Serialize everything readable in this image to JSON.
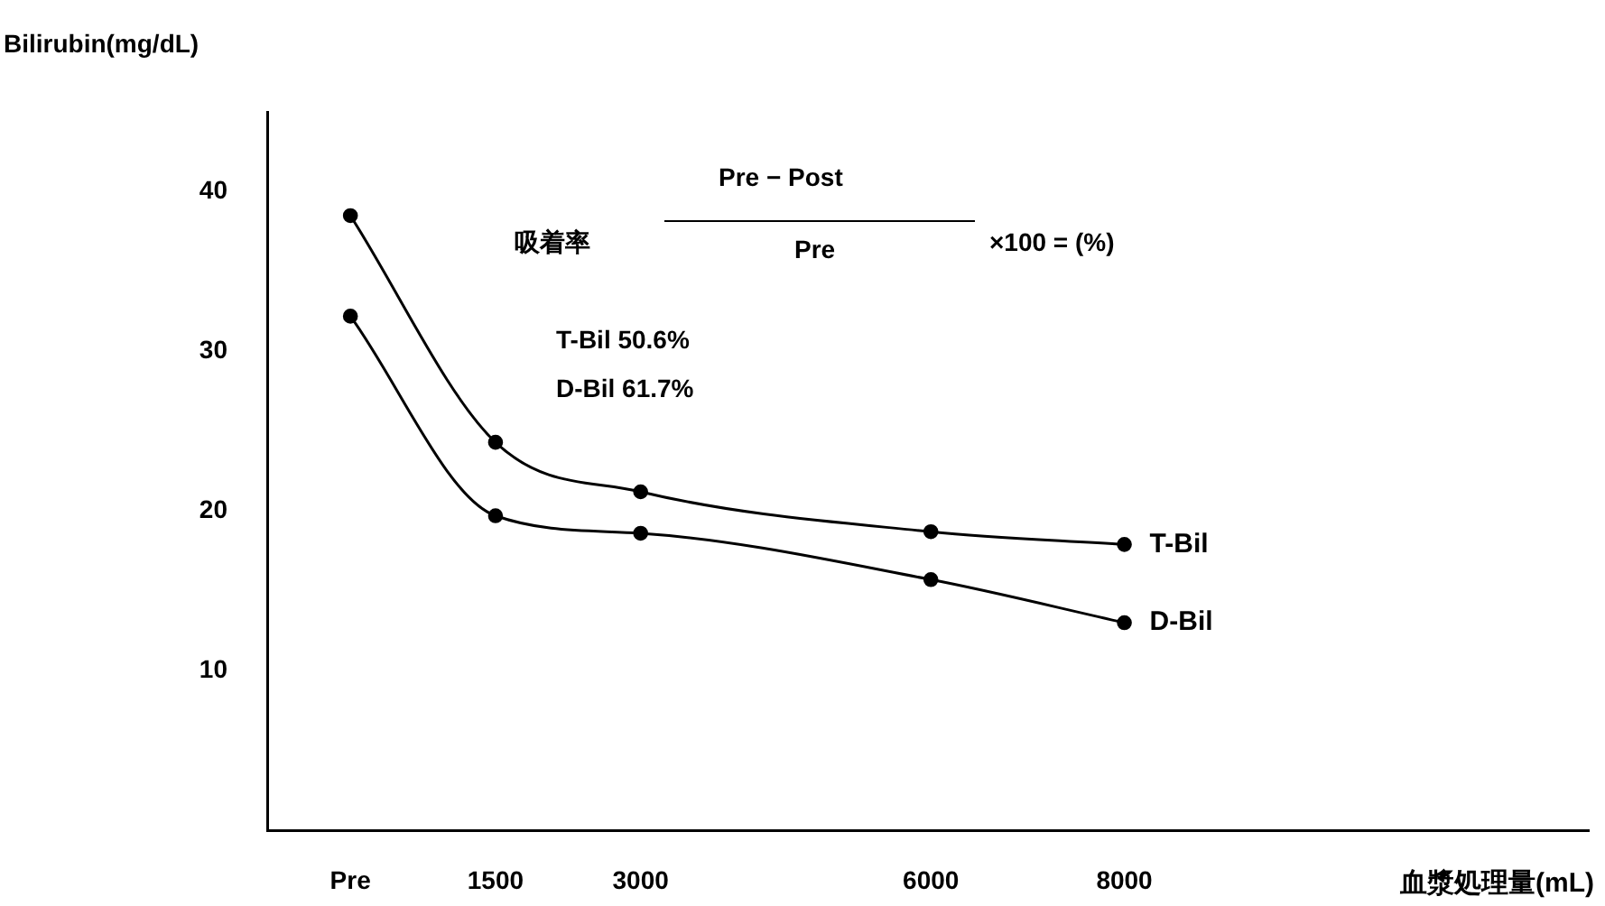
{
  "chart_data": {
    "type": "line",
    "xlabel": "血漿処理量(mL)",
    "ylabel": "Bilirubin(mg/dL)",
    "x": [
      0,
      1500,
      3000,
      6000,
      8000
    ],
    "series": [
      {
        "name": "T-Bil",
        "color": "#000000",
        "values": [
          38.5,
          24.3,
          21.2,
          18.7,
          17.9
        ]
      },
      {
        "name": "D-Bil",
        "color": "#000000",
        "values": [
          32.2,
          19.7,
          18.6,
          15.7,
          13.0
        ]
      }
    ],
    "xlim": [
      -860,
      12800
    ],
    "xticks": [
      {
        "value": 0,
        "label": "Pre"
      },
      1500,
      3000,
      6000,
      8000
    ],
    "ylim": [
      0,
      45
    ],
    "yticks": [
      10,
      20,
      30,
      40
    ],
    "grid": false,
    "legend": false,
    "marker": "circle",
    "line_style": "solid",
    "annotations": [
      "吸着率",
      "Pre − Post",
      "Pre",
      "×100 = (%)",
      "T-Bil  50.6%",
      "D-Bil  61.7%"
    ]
  }
}
